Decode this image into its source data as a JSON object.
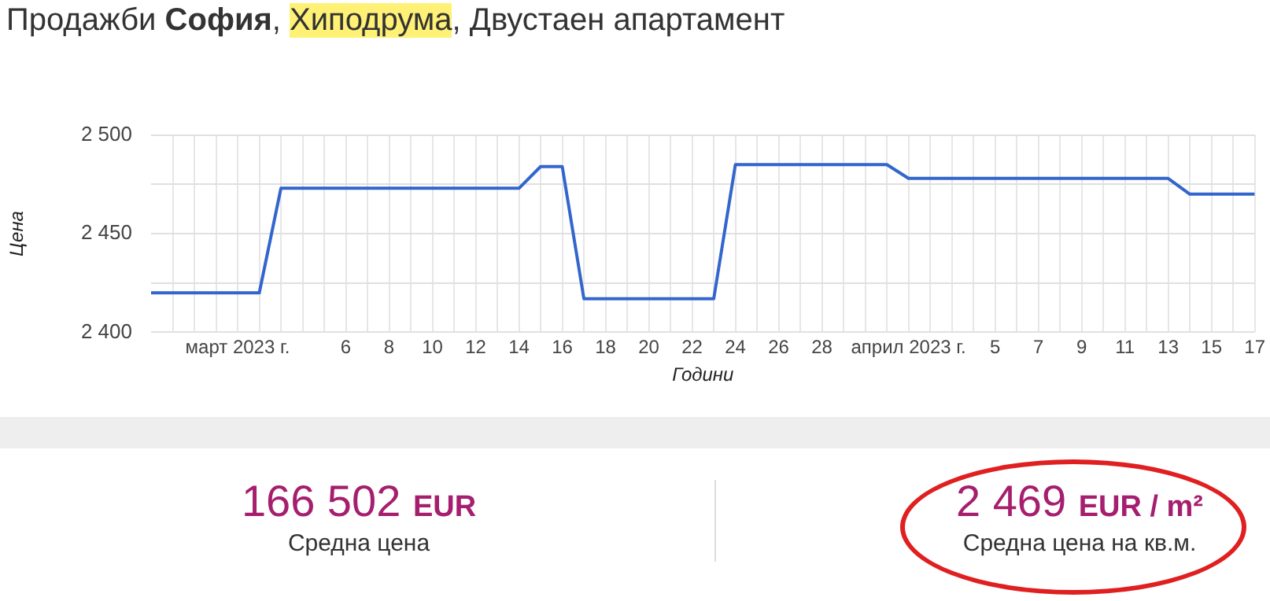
{
  "chart_data": {
    "type": "line",
    "title": "Продажби София, Хиподрума, Двустаен апартамент",
    "xlabel": "Години",
    "ylabel": "Цена",
    "x": [
      "2023-02-25",
      "2023-03-02",
      "2023-03-03",
      "2023-03-14",
      "2023-03-15",
      "2023-03-16",
      "2023-03-17",
      "2023-03-23",
      "2023-03-24",
      "2023-03-31",
      "2023-04-01",
      "2023-04-13",
      "2023-04-14",
      "2023-04-17"
    ],
    "series": [
      {
        "color": "#3366cc",
        "values": [
          2420,
          2420,
          2473,
          2473,
          2484,
          2484,
          2417,
          2417,
          2485,
          2485,
          2478,
          2478,
          2470,
          2470
        ]
      }
    ],
    "xlim": [
      "2023-02-25",
      "2023-04-17"
    ],
    "xticks": [
      {
        "value": "2023-02-26",
        "label": null
      },
      {
        "value": "2023-02-27",
        "label": null
      },
      {
        "value": "2023-02-28",
        "label": null
      },
      {
        "value": "2023-03-01",
        "label": "март 2023 г."
      },
      {
        "value": "2023-03-02",
        "label": null
      },
      {
        "value": "2023-03-03",
        "label": null
      },
      {
        "value": "2023-03-04",
        "label": null
      },
      {
        "value": "2023-03-05",
        "label": null
      },
      {
        "value": "2023-03-06",
        "label": "6"
      },
      {
        "value": "2023-03-07",
        "label": null
      },
      {
        "value": "2023-03-08",
        "label": "8"
      },
      {
        "value": "2023-03-09",
        "label": null
      },
      {
        "value": "2023-03-10",
        "label": "10"
      },
      {
        "value": "2023-03-11",
        "label": null
      },
      {
        "value": "2023-03-12",
        "label": "12"
      },
      {
        "value": "2023-03-13",
        "label": null
      },
      {
        "value": "2023-03-14",
        "label": "14"
      },
      {
        "value": "2023-03-15",
        "label": null
      },
      {
        "value": "2023-03-16",
        "label": "16"
      },
      {
        "value": "2023-03-17",
        "label": null
      },
      {
        "value": "2023-03-18",
        "label": "18"
      },
      {
        "value": "2023-03-19",
        "label": null
      },
      {
        "value": "2023-03-20",
        "label": "20"
      },
      {
        "value": "2023-03-21",
        "label": null
      },
      {
        "value": "2023-03-22",
        "label": "22"
      },
      {
        "value": "2023-03-23",
        "label": null
      },
      {
        "value": "2023-03-24",
        "label": "24"
      },
      {
        "value": "2023-03-25",
        "label": null
      },
      {
        "value": "2023-03-26",
        "label": "26"
      },
      {
        "value": "2023-03-27",
        "label": null
      },
      {
        "value": "2023-03-28",
        "label": "28"
      },
      {
        "value": "2023-03-29",
        "label": null
      },
      {
        "value": "2023-03-30",
        "label": null
      },
      {
        "value": "2023-03-31",
        "label": null
      },
      {
        "value": "2023-04-01",
        "label": "април 2023 г."
      },
      {
        "value": "2023-04-02",
        "label": null
      },
      {
        "value": "2023-04-03",
        "label": null
      },
      {
        "value": "2023-04-04",
        "label": null
      },
      {
        "value": "2023-04-05",
        "label": "5"
      },
      {
        "value": "2023-04-06",
        "label": null
      },
      {
        "value": "2023-04-07",
        "label": "7"
      },
      {
        "value": "2023-04-08",
        "label": null
      },
      {
        "value": "2023-04-09",
        "label": "9"
      },
      {
        "value": "2023-04-10",
        "label": null
      },
      {
        "value": "2023-04-11",
        "label": "11"
      },
      {
        "value": "2023-04-12",
        "label": null
      },
      {
        "value": "2023-04-13",
        "label": "13"
      },
      {
        "value": "2023-04-14",
        "label": null
      },
      {
        "value": "2023-04-15",
        "label": "15"
      },
      {
        "value": "2023-04-16",
        "label": null
      },
      {
        "value": "2023-04-17",
        "label": "17"
      }
    ],
    "ylim": [
      2400,
      2500
    ],
    "yticks": [
      {
        "value": 2400,
        "label": "2 400"
      },
      {
        "value": 2425,
        "label": null
      },
      {
        "value": 2450,
        "label": "2 450"
      },
      {
        "value": 2475,
        "label": null
      },
      {
        "value": 2500,
        "label": "2 500"
      }
    ],
    "grid": true,
    "legend": false,
    "marker": "none",
    "line_style": "solid",
    "annotations": [
      "166 502 EUR",
      "Средна цена",
      "2 469 EUR / m²",
      "Средна цена на кв.м."
    ]
  }
}
